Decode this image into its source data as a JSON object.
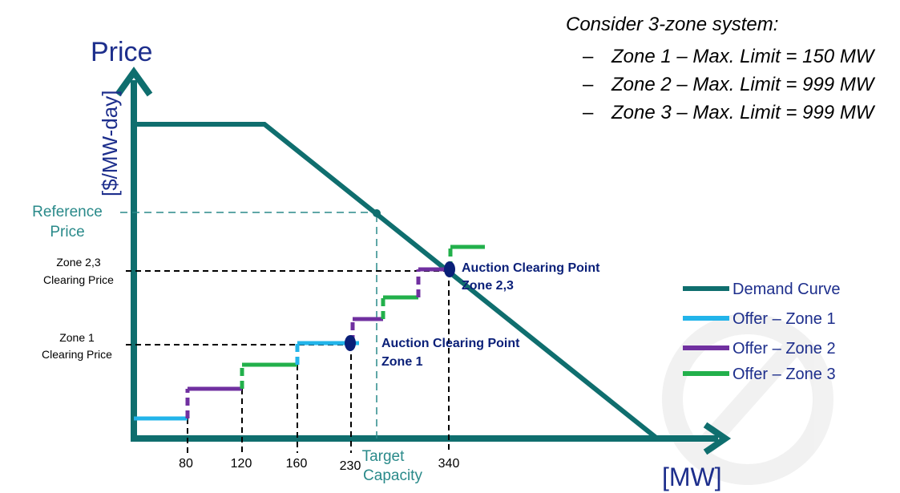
{
  "title": {
    "heading": "Consider 3-zone system:",
    "bullet_glyph": "–",
    "limits": [
      "Zone 1 – Max. Limit = 150 MW",
      "Zone 2 – Max. Limit = 999 MW",
      "Zone 3 – Max. Limit = 999 MW"
    ]
  },
  "axes": {
    "y_title": "Price",
    "y_unit": "[$/MW-day]",
    "x_unit": "[MW]"
  },
  "labels": {
    "reference_price": [
      "Reference",
      "Price"
    ],
    "zone23_clearing_price": [
      "Zone 2,3",
      "Clearing Price"
    ],
    "zone1_clearing_price": [
      "Zone 1",
      "Clearing Price"
    ],
    "target_capacity": [
      "Target",
      "Capacity"
    ],
    "auction_zone1": [
      "Auction Clearing Point",
      "Zone 1"
    ],
    "auction_zone23": [
      "Auction Clearing Point",
      "Zone 2,3"
    ]
  },
  "x_ticks": [
    "80",
    "120",
    "160",
    "230",
    "340"
  ],
  "legend": [
    {
      "label": "Demand Curve",
      "color": "#0f6e6e"
    },
    {
      "label": "Offer – Zone 1",
      "color": "#22b4ea"
    },
    {
      "label": "Offer – Zone 2",
      "color": "#7030a0"
    },
    {
      "label": "Offer – Zone 3",
      "color": "#22b04b"
    }
  ],
  "colors": {
    "axis": "#0f6e6e",
    "demand": "#0f6e6e",
    "reference": "#2a8a8a",
    "zone1": "#22b4ea",
    "zone2": "#7030a0",
    "zone3": "#22b04b",
    "clearing_point": "#0a1f78",
    "title_blue": "#1d2e8c"
  }
}
